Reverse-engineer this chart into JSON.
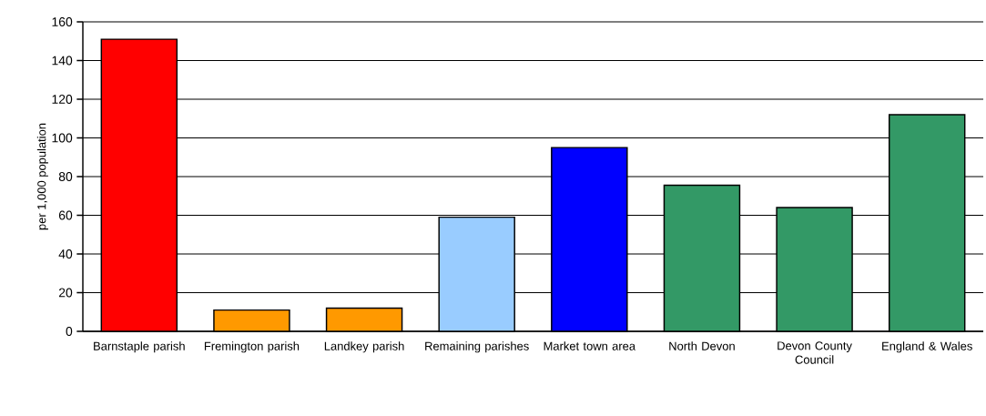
{
  "chart_data": {
    "type": "bar",
    "ylabel": "per 1,000 population",
    "categories": [
      "Barnstaple parish",
      "Fremington parish",
      "Landkey parish",
      "Remaining parishes",
      "Market town area",
      "North Devon",
      "Devon County Council",
      "England & Wales"
    ],
    "values": [
      151,
      11,
      12,
      59,
      95,
      75.5,
      64,
      112
    ],
    "colors": [
      "#ff0000",
      "#ff9900",
      "#ff9900",
      "#99ccff",
      "#0000ff",
      "#339966",
      "#339966",
      "#339966"
    ],
    "ylim": [
      0,
      160
    ],
    "yticks": [
      0,
      20,
      40,
      60,
      80,
      100,
      120,
      140,
      160
    ],
    "grid": "y"
  }
}
